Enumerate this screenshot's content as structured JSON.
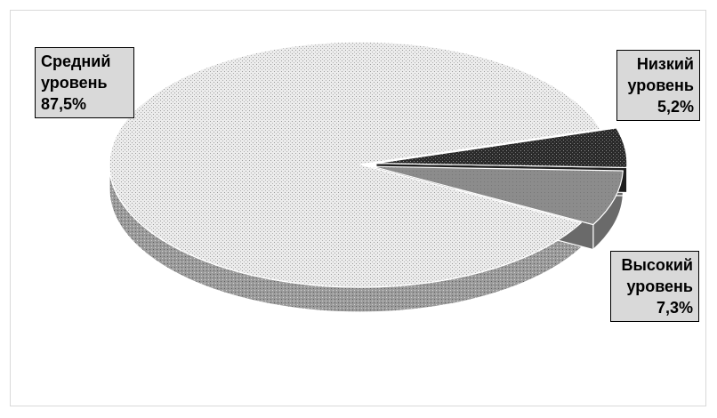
{
  "chart_data": {
    "type": "pie",
    "title": "",
    "slices": [
      {
        "name": "Средний уровень",
        "line1": "Средний",
        "line2": "уровень",
        "value": 87.5,
        "value_label": "87,5%",
        "pattern": "light-stipple",
        "color": "#e3e3e3"
      },
      {
        "name": "Низкий уровень",
        "line1": "Низкий",
        "line2": "уровень",
        "value": 5.2,
        "value_label": "5,2%",
        "pattern": "dark-stipple",
        "color": "#2a2a2a"
      },
      {
        "name": "Высокий уровень",
        "line1": "Высокий",
        "line2": "уровень",
        "value": 7.3,
        "value_label": "7,3%",
        "pattern": "medium-gray",
        "color": "#8c8c8c"
      }
    ],
    "style": "3d-exploded-pie",
    "legend": "none",
    "data_labels": "callout-boxes"
  }
}
